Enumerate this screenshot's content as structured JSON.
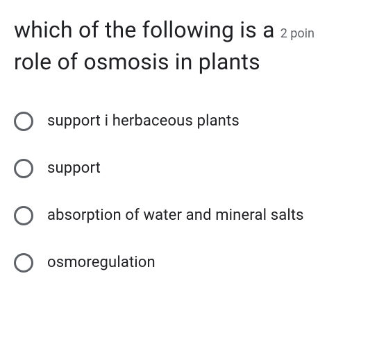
{
  "question": {
    "text_line1": "which of the following is a",
    "text_line2": "role of osmosis in plants",
    "points_label": "2 poin",
    "question_fontsize": 32,
    "question_color": "#202124",
    "points_fontsize": 18,
    "points_color": "#5f6368"
  },
  "options": [
    {
      "label": "support i herbaceous plants",
      "selected": false
    },
    {
      "label": "support",
      "selected": false
    },
    {
      "label": "absorption of water and mineral salts",
      "selected": false
    },
    {
      "label": "osmoregulation",
      "selected": false
    }
  ],
  "styling": {
    "background_color": "#ffffff",
    "option_fontsize": 22,
    "option_color": "#202124",
    "radio_border_color": "#5f6368",
    "radio_size": 28,
    "radio_border_width": 3,
    "option_spacing": 40
  }
}
